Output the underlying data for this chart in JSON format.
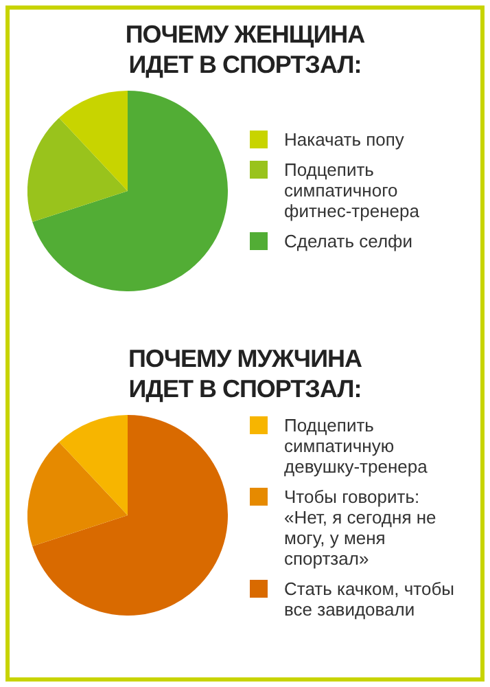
{
  "chart_data": [
    {
      "type": "pie",
      "title": "ПОЧЕМУ ЖЕНЩИНА ИДЕТ В СПОРТЗАЛ:",
      "categories": [
        "Накачать попу",
        "Подцепить симпатичного фитнес-тренера",
        "Сделать селфи"
      ],
      "values": [
        12,
        18,
        70
      ],
      "colors": [
        "#c8d400",
        "#99c31c",
        "#52ad35"
      ],
      "legend": "right"
    },
    {
      "type": "pie",
      "title": "ПОЧЕМУ МУЖЧИНА ИДЕТ В СПОРТЗАЛ:",
      "categories": [
        "Подцепить симпатичную девушку-тренера",
        "Чтобы говорить: «Нет, я сегодня не могу, у меня спортзал»",
        "Стать качком, чтобы все завидовали"
      ],
      "values": [
        12,
        18,
        70
      ],
      "colors": [
        "#f7b500",
        "#e68a00",
        "#d96a00"
      ],
      "legend": "right"
    }
  ]
}
